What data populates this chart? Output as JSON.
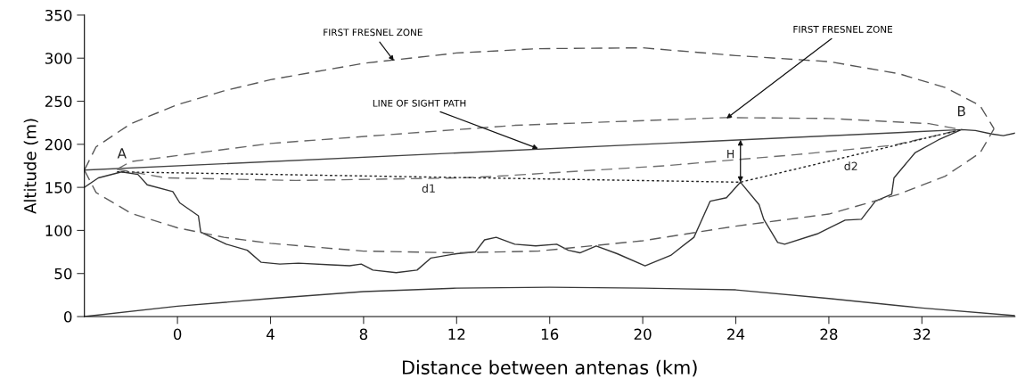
{
  "chart_data": {
    "type": "line",
    "xlabel": "Distance between antenas (km)",
    "ylabel": "Altitude (m)",
    "xlim": [
      -4,
      36
    ],
    "ylim": [
      0,
      350
    ],
    "xticks": [
      0,
      4,
      8,
      12,
      16,
      20,
      24,
      28,
      32
    ],
    "yticks": [
      0,
      50,
      100,
      150,
      200,
      250,
      300,
      350
    ],
    "series": [
      {
        "color": "#333333",
        "line_style": "solid",
        "x": [
          -4,
          -3.4,
          -2.4,
          -1.7,
          -1.3,
          -0.2,
          0.1,
          0.9,
          1.0,
          2.1,
          3.0,
          3.6,
          4.4,
          5.2,
          6.6,
          7.4,
          7.9,
          8.4,
          9.4,
          10.3,
          10.9,
          12.0,
          12.8,
          13.2,
          13.7,
          14.5,
          15.4,
          16.3,
          16.8,
          17.3,
          18.0,
          18.9,
          20.1,
          21.2,
          22.2,
          22.9,
          23.6,
          24.2,
          25.0,
          25.2,
          25.8,
          26.1,
          27.5,
          28.7,
          29.4,
          30.0,
          30.7,
          30.8,
          31.7,
          32.7,
          33.7,
          34.3,
          35.0,
          35.5,
          36.0
        ],
        "values": [
          150,
          161,
          168,
          165,
          153,
          145,
          132,
          117,
          98,
          84,
          77,
          63,
          61,
          62,
          60,
          59,
          61,
          54,
          51,
          54,
          68,
          73,
          75,
          89,
          92,
          84,
          82,
          84,
          77,
          74,
          82,
          73,
          59,
          71,
          92,
          134,
          138,
          156,
          130,
          113,
          86,
          84,
          96,
          112,
          113,
          134,
          142,
          161,
          190,
          205,
          217,
          216,
          212,
          210,
          213
        ]
      },
      {
        "color": "#3a3a3a",
        "line_style": "solid",
        "x": [
          -4,
          0,
          4,
          8,
          12,
          16,
          20,
          24,
          28,
          32,
          36
        ],
        "values": [
          0,
          12,
          21,
          29,
          33,
          34,
          33,
          31,
          21,
          10,
          1
        ]
      },
      {
        "color": "#444444",
        "line_style": "solid",
        "x": [
          -4,
          33.7
        ],
        "values": [
          170,
          217
        ]
      },
      {
        "color": "#555555",
        "line_style": "dashed",
        "x": [
          -4,
          -3.5,
          -2,
          0,
          2,
          4,
          8,
          12,
          15.5,
          20,
          24,
          28,
          31,
          33,
          34.5,
          35.1
        ],
        "values": [
          170,
          197,
          224,
          246,
          262,
          275,
          294,
          306,
          311,
          312,
          303,
          296,
          282,
          266,
          245,
          218
        ]
      },
      {
        "color": "#5c5c5c",
        "line_style": "dashed",
        "x": [
          -4,
          -3.5,
          -2,
          0,
          2,
          4,
          8,
          12,
          15.5,
          20,
          24,
          28,
          31,
          33,
          34.5,
          35.1
        ],
        "values": [
          170,
          144,
          120,
          103,
          92,
          85,
          76,
          74,
          76,
          88,
          105,
          119,
          142,
          163,
          190,
          218
        ]
      },
      {
        "color": "#666666",
        "line_style": "dashed",
        "x": [
          -2.6,
          -2.0,
          4.0,
          14.5,
          23.6,
          28.0,
          32.3,
          33.7
        ],
        "values": [
          171,
          180,
          201,
          222,
          231,
          230,
          224,
          217
        ]
      },
      {
        "color": "#6e6e6e",
        "line_style": "dashed",
        "x": [
          -2.6,
          -0.5,
          5.1,
          12.2,
          13.8,
          20.9,
          26.6,
          30.8,
          33.7
        ],
        "values": [
          171,
          161,
          158,
          161,
          163,
          175,
          188,
          199,
          217
        ]
      },
      {
        "color": "#222222",
        "line_style": "dotted",
        "x": [
          -2.6,
          24.2,
          33.7
        ],
        "values": [
          168,
          156,
          217
        ]
      }
    ],
    "annotations": [
      {
        "text": "FIRST FRESNEL ZONE",
        "x": 9.3,
        "y": 297
      },
      {
        "text": "FIRST FRESNEL ZONE",
        "x": 23.6,
        "y": 230
      },
      {
        "text": "LINE OF SIGHT PATH",
        "x": 15.5,
        "y": 195
      },
      "A",
      "B",
      {
        "text": "H",
        "x": 24.2,
        "y": 156
      },
      "d1",
      "d2"
    ]
  }
}
